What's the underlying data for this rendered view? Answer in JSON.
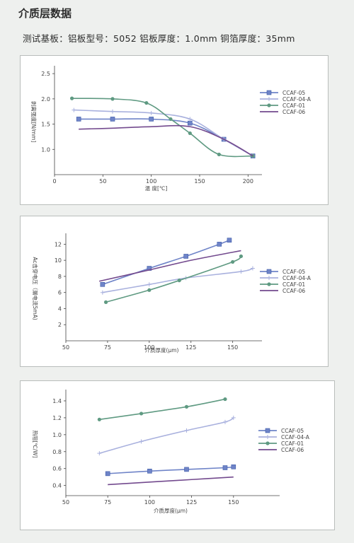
{
  "page": {
    "title": "介质层数据",
    "subtitle": "测试基板：铝板型号：5052  铝板厚度：1.0mm  铜箔厚度：35mm"
  },
  "series_colors": {
    "CCAF-05": "#6f84c8",
    "CCAF-04-A": "#a9b1de",
    "CCAF-01": "#5f9a82",
    "CCAF-06": "#734a8e"
  },
  "chart_data": [
    {
      "type": "line",
      "title": "",
      "xlabel": "温 度[℃]",
      "ylabel": "剥离强度[N/mm]",
      "xlim": [
        0,
        210
      ],
      "ylim": [
        0.5,
        2.6
      ],
      "xticks": [
        0,
        50,
        100,
        150,
        200
      ],
      "yticks": [
        1.0,
        1.5,
        2.0,
        2.5
      ],
      "grid": false,
      "legend": "right",
      "series": [
        {
          "name": "CCAF-05",
          "marker": "square",
          "x": [
            25,
            60,
            100,
            140,
            175,
            205
          ],
          "y": [
            1.6,
            1.6,
            1.6,
            1.52,
            1.2,
            0.87
          ]
        },
        {
          "name": "CCAF-04-A",
          "marker": "plus",
          "x": [
            20,
            60,
            100,
            140,
            175,
            205
          ],
          "y": [
            1.78,
            1.75,
            1.72,
            1.6,
            1.2,
            0.87
          ]
        },
        {
          "name": "CCAF-01",
          "marker": "dot",
          "x": [
            18,
            60,
            95,
            120,
            140,
            170,
            205
          ],
          "y": [
            2.01,
            2.0,
            1.92,
            1.6,
            1.32,
            0.9,
            0.87
          ]
        },
        {
          "name": "CCAF-06",
          "marker": "none",
          "x": [
            25,
            60,
            100,
            140,
            175,
            205
          ],
          "y": [
            1.4,
            1.42,
            1.45,
            1.45,
            1.2,
            0.87
          ]
        }
      ]
    },
    {
      "type": "line",
      "title": "",
      "xlabel": "介质厚度(μm)",
      "ylabel": "Ac击穿电压（漏电流5mA)",
      "xlim": [
        50,
        165
      ],
      "ylim": [
        0,
        13
      ],
      "xticks": [
        50,
        75,
        100,
        125,
        150
      ],
      "yticks": [
        2,
        4,
        6,
        8,
        10,
        12
      ],
      "grid": false,
      "legend": "right",
      "series": [
        {
          "name": "CCAF-05",
          "marker": "square",
          "x": [
            72,
            100,
            122,
            142,
            148
          ],
          "y": [
            7.0,
            9.0,
            10.5,
            12.0,
            12.5
          ]
        },
        {
          "name": "CCAF-04-A",
          "marker": "plus",
          "x": [
            72,
            100,
            122,
            155,
            162
          ],
          "y": [
            6.0,
            7.0,
            7.8,
            8.6,
            9.0
          ]
        },
        {
          "name": "CCAF-01",
          "marker": "dot",
          "x": [
            74,
            100,
            118,
            150,
            155
          ],
          "y": [
            4.8,
            6.3,
            7.5,
            9.8,
            10.5
          ]
        },
        {
          "name": "CCAF-06",
          "marker": "none",
          "x": [
            70,
            100,
            125,
            150,
            155
          ],
          "y": [
            7.4,
            8.8,
            10.0,
            11.0,
            11.2
          ]
        }
      ]
    },
    {
      "type": "line",
      "title": "",
      "xlabel": "介质厚度(μm)",
      "ylabel": "热阻[℃/W]",
      "xlim": [
        50,
        175
      ],
      "ylim": [
        0.28,
        1.5
      ],
      "xticks": [
        50,
        75,
        100,
        125,
        150
      ],
      "yticks": [
        0.4,
        0.6,
        0.8,
        1.0,
        1.2,
        1.4
      ],
      "grid": false,
      "legend": "right",
      "series": [
        {
          "name": "CCAF-05",
          "marker": "square",
          "x": [
            75,
            100,
            122,
            145,
            150
          ],
          "y": [
            0.54,
            0.57,
            0.59,
            0.61,
            0.62
          ]
        },
        {
          "name": "CCAF-04-A",
          "marker": "plus",
          "x": [
            70,
            95,
            122,
            145,
            150
          ],
          "y": [
            0.78,
            0.92,
            1.05,
            1.15,
            1.2
          ]
        },
        {
          "name": "CCAF-01",
          "marker": "dot",
          "x": [
            70,
            95,
            122,
            145
          ],
          "y": [
            1.18,
            1.25,
            1.33,
            1.42
          ]
        },
        {
          "name": "CCAF-06",
          "marker": "none",
          "x": [
            75,
            100,
            125,
            150
          ],
          "y": [
            0.41,
            0.44,
            0.47,
            0.5
          ]
        }
      ]
    }
  ]
}
